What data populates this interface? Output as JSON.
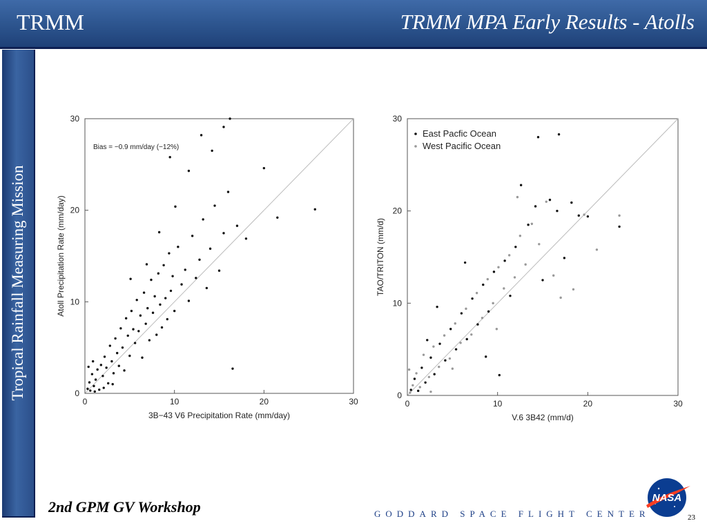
{
  "header": {
    "left_title": "TRMM",
    "right_title": "TRMM MPA Early Results - Atolls"
  },
  "sidebar": {
    "vertical_text": "Tropical Rainfall Measuring Mission"
  },
  "footer": {
    "workshop": "2nd GPM GV Workshop",
    "center_text": "GODDARD SPACE FLIGHT CENTER",
    "page_number": "23",
    "logo_text": "NASA"
  },
  "chart_data": [
    {
      "type": "scatter",
      "xlabel": "3B−43 V6 Precipitation Rate (mm/day)",
      "ylabel": "Atoll Precipitation Rate (mm/day)",
      "xlim": [
        0,
        30
      ],
      "ylim": [
        0,
        30
      ],
      "x_ticks": [
        "0",
        "10",
        "20",
        "30"
      ],
      "y_ticks": [
        "0",
        "10",
        "20",
        "30"
      ],
      "annotation": "Bias = −0.9 mm/day (−12%)",
      "reference_line": "1:1",
      "series": [
        {
          "color": "#111111",
          "points": [
            [
              0.3,
              0.5
            ],
            [
              0.5,
              1.2
            ],
            [
              0.6,
              0.3
            ],
            [
              0.8,
              2.1
            ],
            [
              1.0,
              0.8
            ],
            [
              1.2,
              1.5
            ],
            [
              1.4,
              2.6
            ],
            [
              1.6,
              0.4
            ],
            [
              1.8,
              3.1
            ],
            [
              2.0,
              1.9
            ],
            [
              2.2,
              4.0
            ],
            [
              2.4,
              2.8
            ],
            [
              2.6,
              1.1
            ],
            [
              2.8,
              5.2
            ],
            [
              3.0,
              3.5
            ],
            [
              3.2,
              2.2
            ],
            [
              3.4,
              6.0
            ],
            [
              3.6,
              4.4
            ],
            [
              3.8,
              3.0
            ],
            [
              4.0,
              7.1
            ],
            [
              4.2,
              5.0
            ],
            [
              4.4,
              2.5
            ],
            [
              4.6,
              8.2
            ],
            [
              4.8,
              6.3
            ],
            [
              5.0,
              4.1
            ],
            [
              5.2,
              9.0
            ],
            [
              5.4,
              7.0
            ],
            [
              5.6,
              5.5
            ],
            [
              5.8,
              10.2
            ],
            [
              6.0,
              6.8
            ],
            [
              6.2,
              8.5
            ],
            [
              6.4,
              3.9
            ],
            [
              6.6,
              11.0
            ],
            [
              6.8,
              7.6
            ],
            [
              7.0,
              9.3
            ],
            [
              7.2,
              5.8
            ],
            [
              7.4,
              12.4
            ],
            [
              7.6,
              8.8
            ],
            [
              7.8,
              10.6
            ],
            [
              8.0,
              6.4
            ],
            [
              8.2,
              13.1
            ],
            [
              8.4,
              9.7
            ],
            [
              8.6,
              7.2
            ],
            [
              8.8,
              14.0
            ],
            [
              9.0,
              10.4
            ],
            [
              9.2,
              8.1
            ],
            [
              9.4,
              15.3
            ],
            [
              9.6,
              11.2
            ],
            [
              9.8,
              12.8
            ],
            [
              10.0,
              9.0
            ],
            [
              10.4,
              16.0
            ],
            [
              10.8,
              11.9
            ],
            [
              11.2,
              13.5
            ],
            [
              11.6,
              10.1
            ],
            [
              12.0,
              17.2
            ],
            [
              12.4,
              12.6
            ],
            [
              12.8,
              14.6
            ],
            [
              13.2,
              19.0
            ],
            [
              13.6,
              11.5
            ],
            [
              14.0,
              15.8
            ],
            [
              14.5,
              20.5
            ],
            [
              15.0,
              13.4
            ],
            [
              15.5,
              17.5
            ],
            [
              16.0,
              22.0
            ],
            [
              16.5,
              2.7
            ],
            [
              17.0,
              18.3
            ],
            [
              18.0,
              16.9
            ],
            [
              20.0,
              24.6
            ],
            [
              21.5,
              19.2
            ],
            [
              25.7,
              20.1
            ],
            [
              13.0,
              28.2
            ],
            [
              14.2,
              26.5
            ],
            [
              15.5,
              29.1
            ],
            [
              16.2,
              30.0
            ],
            [
              9.5,
              25.8
            ],
            [
              11.6,
              24.3
            ],
            [
              1.1,
              0.2
            ],
            [
              0.9,
              3.5
            ],
            [
              2.1,
              0.6
            ],
            [
              3.1,
              1.0
            ],
            [
              0.4,
              2.9
            ],
            [
              6.9,
              14.1
            ],
            [
              8.3,
              17.6
            ],
            [
              10.1,
              20.4
            ],
            [
              5.1,
              12.5
            ]
          ]
        }
      ]
    },
    {
      "type": "scatter",
      "xlabel": "V.6 3B42 (mm/d)",
      "ylabel": "TAO/TRITON (mm/d)",
      "xlim": [
        0,
        30
      ],
      "ylim": [
        0,
        30
      ],
      "x_ticks": [
        "0",
        "10",
        "20",
        "30"
      ],
      "y_ticks": [
        "0",
        "10",
        "20",
        "30"
      ],
      "reference_line": "1:1",
      "legend_position": "top-left",
      "series": [
        {
          "name": "East Pacfic Ocean",
          "color": "#111111",
          "points": [
            [
              0.4,
              0.6
            ],
            [
              0.8,
              1.8
            ],
            [
              1.2,
              0.5
            ],
            [
              1.6,
              3.0
            ],
            [
              2.0,
              1.4
            ],
            [
              2.6,
              4.1
            ],
            [
              3.0,
              2.3
            ],
            [
              3.6,
              5.6
            ],
            [
              4.2,
              3.8
            ],
            [
              4.8,
              7.2
            ],
            [
              5.4,
              5.0
            ],
            [
              6.0,
              8.9
            ],
            [
              6.6,
              6.1
            ],
            [
              7.2,
              10.5
            ],
            [
              7.8,
              7.7
            ],
            [
              8.4,
              12.0
            ],
            [
              9.0,
              9.1
            ],
            [
              9.6,
              13.4
            ],
            [
              10.2,
              2.2
            ],
            [
              10.8,
              14.6
            ],
            [
              11.4,
              10.8
            ],
            [
              12.0,
              16.1
            ],
            [
              12.6,
              22.8
            ],
            [
              13.4,
              18.5
            ],
            [
              14.2,
              20.5
            ],
            [
              15.0,
              12.5
            ],
            [
              15.8,
              21.2
            ],
            [
              16.6,
              20.0
            ],
            [
              17.4,
              14.9
            ],
            [
              18.2,
              20.9
            ],
            [
              19.0,
              19.5
            ],
            [
              20.0,
              19.4
            ],
            [
              23.5,
              18.3
            ],
            [
              14.5,
              28.0
            ],
            [
              16.8,
              28.3
            ],
            [
              3.3,
              9.6
            ],
            [
              6.4,
              14.4
            ],
            [
              2.2,
              6.0
            ],
            [
              8.7,
              4.2
            ]
          ]
        },
        {
          "name": "West Pacific Ocean",
          "color": "#999999",
          "points": [
            [
              0.3,
              0.3
            ],
            [
              0.6,
              1.1
            ],
            [
              1.0,
              2.4
            ],
            [
              1.4,
              0.9
            ],
            [
              1.8,
              4.4
            ],
            [
              2.4,
              2.0
            ],
            [
              2.9,
              5.3
            ],
            [
              3.5,
              3.1
            ],
            [
              4.1,
              6.5
            ],
            [
              4.7,
              4.0
            ],
            [
              5.3,
              7.8
            ],
            [
              5.9,
              5.7
            ],
            [
              6.5,
              9.4
            ],
            [
              7.1,
              6.6
            ],
            [
              7.7,
              11.1
            ],
            [
              8.3,
              8.4
            ],
            [
              8.9,
              12.6
            ],
            [
              9.5,
              10.0
            ],
            [
              10.1,
              13.9
            ],
            [
              10.7,
              11.6
            ],
            [
              11.3,
              15.2
            ],
            [
              11.9,
              12.8
            ],
            [
              12.5,
              17.3
            ],
            [
              13.1,
              14.2
            ],
            [
              13.8,
              18.6
            ],
            [
              14.6,
              16.4
            ],
            [
              15.4,
              21.0
            ],
            [
              16.2,
              13.0
            ],
            [
              17.0,
              10.6
            ],
            [
              18.4,
              11.5
            ],
            [
              19.6,
              19.6
            ],
            [
              23.5,
              19.5
            ],
            [
              21.0,
              15.8
            ],
            [
              12.2,
              21.5
            ],
            [
              2.6,
              0.4
            ],
            [
              0.2,
              2.8
            ],
            [
              5.0,
              2.9
            ],
            [
              9.9,
              7.2
            ]
          ]
        }
      ]
    }
  ]
}
